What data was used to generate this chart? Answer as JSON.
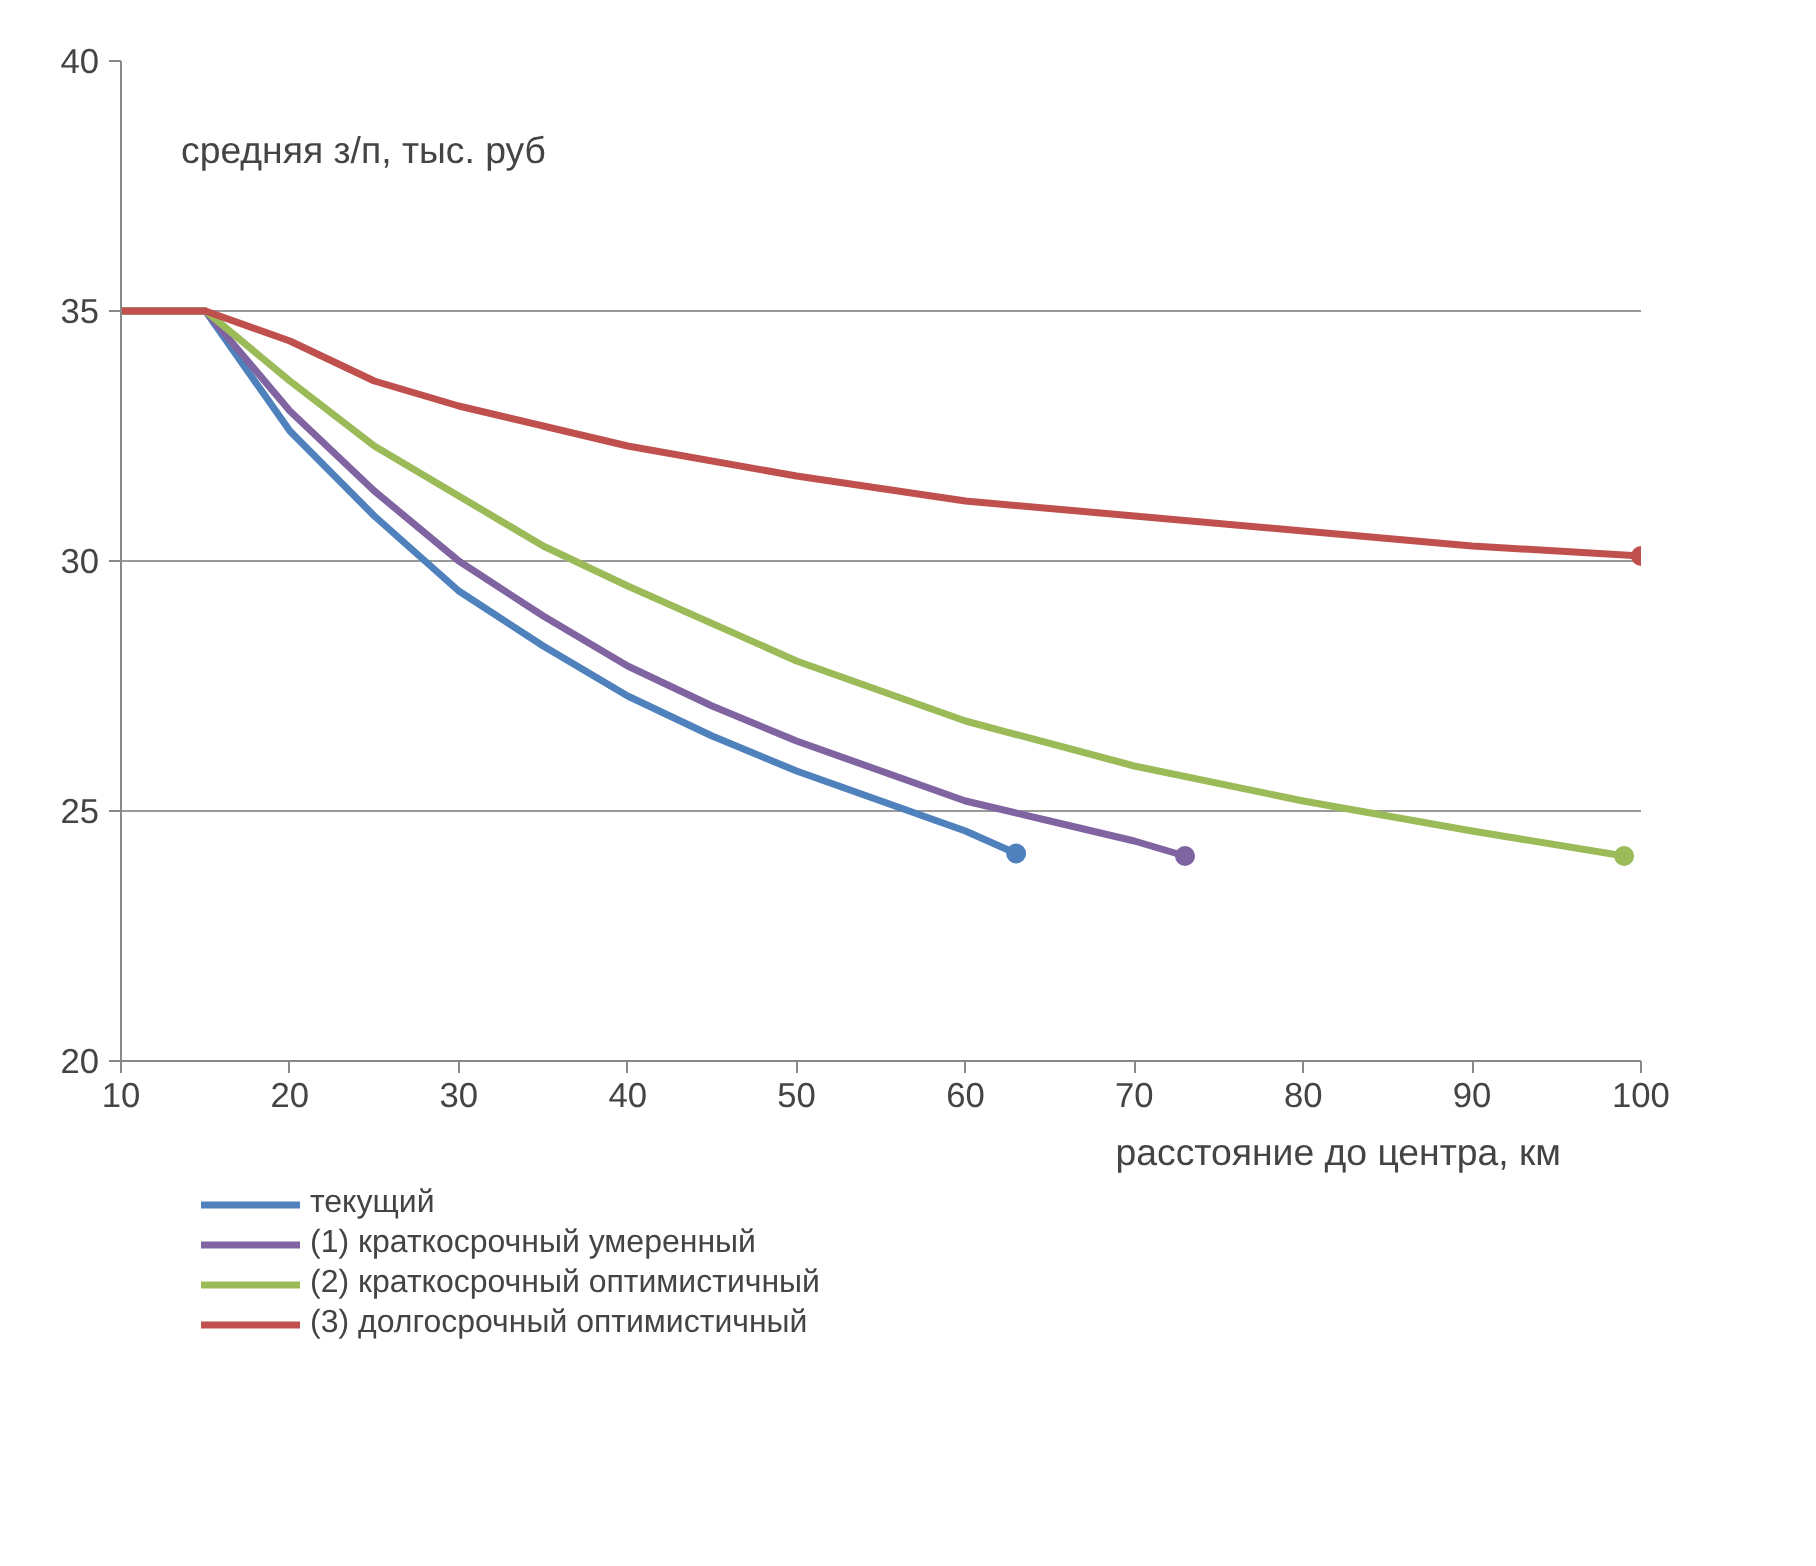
{
  "chart_data": {
    "type": "line",
    "ylabel": "средняя з/п, тыс. руб",
    "xlabel": "расстояние до центра, км",
    "xlim": [
      10,
      100
    ],
    "xticks": [
      10,
      20,
      30,
      40,
      50,
      60,
      70,
      80,
      90,
      100
    ],
    "ylim": [
      20,
      40
    ],
    "yticks": [
      20,
      25,
      30,
      35,
      40
    ],
    "grid": "y",
    "legend": "bottom",
    "line_style": "solid",
    "series": [
      {
        "name": "текущий",
        "color": "#4f81bd",
        "x": [
          10,
          15,
          20,
          25,
          30,
          35,
          40,
          45,
          50,
          55,
          60,
          63
        ],
        "values": [
          35,
          35,
          32.6,
          30.9,
          29.4,
          28.3,
          27.3,
          26.5,
          25.8,
          25.2,
          24.6,
          24.15
        ]
      },
      {
        "name": "(1) краткосрочный умеренный",
        "color": "#8064a2",
        "x": [
          10,
          15,
          20,
          25,
          30,
          35,
          40,
          45,
          50,
          55,
          60,
          65,
          70,
          73
        ],
        "values": [
          35,
          35,
          33,
          31.4,
          30,
          28.9,
          27.9,
          27.1,
          26.4,
          25.8,
          25.2,
          24.8,
          24.4,
          24.1
        ]
      },
      {
        "name": "(2) краткосрочный оптимистичный",
        "color": "#9bbb59",
        "x": [
          10,
          15,
          20,
          25,
          30,
          35,
          40,
          50,
          60,
          70,
          80,
          90,
          99
        ],
        "values": [
          35,
          35,
          33.6,
          32.3,
          31.3,
          30.3,
          29.5,
          28,
          26.8,
          25.9,
          25.2,
          24.6,
          24.1
        ]
      },
      {
        "name": "(3) долгосрочный оптимистичный",
        "color": "#c0504d",
        "x": [
          10,
          15,
          20,
          25,
          30,
          40,
          50,
          60,
          70,
          80,
          90,
          100
        ],
        "values": [
          35,
          35,
          34.4,
          33.6,
          33.1,
          32.3,
          31.7,
          31.2,
          30.9,
          30.6,
          30.3,
          30.1
        ]
      },
      {
        "type": "scatter",
        "marker": "circle",
        "color": "#4f81bd",
        "x": [
          63
        ],
        "values": [
          24.15
        ]
      },
      {
        "type": "scatter",
        "marker": "circle",
        "color": "#8064a2",
        "x": [
          73
        ],
        "values": [
          24.1
        ]
      },
      {
        "type": "scatter",
        "marker": "circle",
        "color": "#9bbb59",
        "x": [
          99
        ],
        "values": [
          24.1
        ]
      },
      {
        "type": "scatter",
        "marker": "circle",
        "color": "#c0504d",
        "x": [
          100
        ],
        "values": [
          30.1
        ]
      }
    ]
  }
}
